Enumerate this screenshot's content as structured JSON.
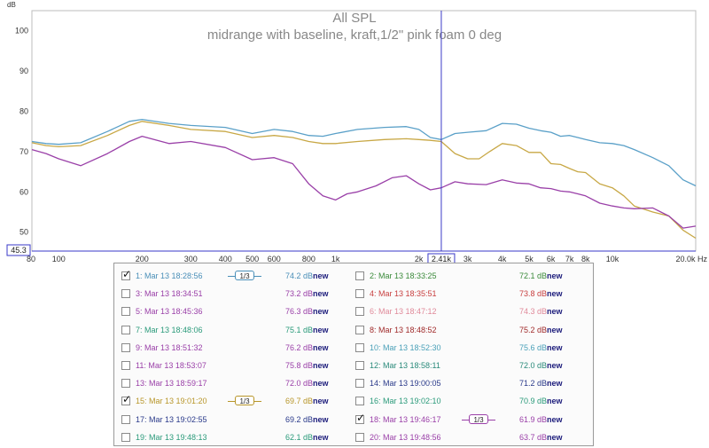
{
  "chart_data": {
    "type": "line",
    "title": "All SPL",
    "subtitle": "midrange  with baseline, kraft,1/2\" pink foam  0 deg",
    "ylabel": "dB",
    "xlabel": "Hz",
    "xscale": "log",
    "xlim": [
      80,
      20000
    ],
    "ylim": [
      45.3,
      105
    ],
    "y_ticks": [
      50,
      60,
      70,
      80,
      90,
      100
    ],
    "y_tick_labels": [
      "50",
      "60",
      "70",
      "80",
      "90",
      "100"
    ],
    "x_ticks": [
      80,
      100,
      200,
      300,
      400,
      500,
      600,
      800,
      1000,
      2000,
      3000,
      4000,
      5000,
      6000,
      7000,
      8000,
      10000,
      20000
    ],
    "x_tick_labels": [
      "80",
      "100",
      "200",
      "300",
      "400",
      "500",
      "600",
      "800",
      "1k",
      "2k",
      "3k",
      "4k",
      "5k",
      "6k",
      "7k",
      "8k",
      "10k",
      "20.0k Hz"
    ],
    "cursor": {
      "x": 2410,
      "x_label": "2.41k",
      "y_label": "45.3"
    },
    "grid": true,
    "series": [
      {
        "color": "#5aa0c8",
        "x": [
          80,
          90,
          100,
          120,
          150,
          180,
          200,
          250,
          300,
          400,
          500,
          600,
          700,
          800,
          900,
          1000,
          1200,
          1500,
          1800,
          2000,
          2200,
          2410,
          2700,
          3000,
          3500,
          4000,
          4500,
          5000,
          5500,
          6000,
          6500,
          7000,
          7500,
          8000,
          9000,
          10000,
          11000,
          12000,
          14000,
          16000,
          18000,
          20000
        ],
        "y": [
          72.5,
          72,
          71.8,
          72.2,
          75,
          77.5,
          78,
          77,
          76.5,
          76,
          74.5,
          75.5,
          75,
          74,
          73.8,
          74.5,
          75.5,
          76,
          76.2,
          75.5,
          73.5,
          73,
          74.5,
          74.8,
          75.2,
          77,
          76.8,
          75.8,
          75.2,
          74.8,
          73.8,
          74,
          73.5,
          73,
          72.2,
          72,
          71.5,
          70.5,
          68.5,
          66.5,
          63,
          61.5
        ]
      },
      {
        "color": "#c8a846",
        "x": [
          80,
          90,
          100,
          120,
          150,
          180,
          200,
          250,
          300,
          400,
          500,
          600,
          700,
          800,
          900,
          1000,
          1200,
          1500,
          1800,
          2000,
          2200,
          2410,
          2700,
          3000,
          3300,
          3600,
          4000,
          4500,
          5000,
          5500,
          6000,
          6500,
          7000,
          7500,
          8000,
          9000,
          10000,
          11000,
          12000,
          14000,
          16000,
          18000,
          20000
        ],
        "y": [
          72.2,
          71.5,
          71.2,
          71.5,
          74,
          76.5,
          77.5,
          76.5,
          75.5,
          75,
          73.5,
          74,
          73.5,
          72.5,
          72,
          72,
          72.5,
          73,
          73.2,
          73,
          72.8,
          72.5,
          69.5,
          68.2,
          68.2,
          70,
          72,
          71.5,
          69.8,
          69.8,
          67,
          66.8,
          65.8,
          65,
          64.8,
          62,
          61,
          59,
          56.5,
          55,
          54,
          50.5,
          48.5
        ]
      },
      {
        "color": "#9a40a8",
        "x": [
          80,
          90,
          100,
          120,
          150,
          180,
          200,
          250,
          300,
          400,
          500,
          600,
          700,
          800,
          900,
          1000,
          1100,
          1200,
          1400,
          1600,
          1800,
          2000,
          2200,
          2410,
          2700,
          3000,
          3500,
          4000,
          4500,
          5000,
          5500,
          6000,
          6500,
          7000,
          7500,
          8000,
          9000,
          10000,
          11000,
          12000,
          14000,
          16000,
          18000,
          20000
        ],
        "y": [
          70.5,
          69.5,
          68.2,
          66.5,
          69.5,
          72.5,
          73.8,
          72,
          72.5,
          71,
          68,
          68.5,
          67,
          62,
          59,
          58,
          59.5,
          60,
          61.5,
          63.5,
          64,
          62,
          60.5,
          61,
          62.5,
          62,
          61.8,
          63,
          62.2,
          62,
          61,
          60.8,
          60.2,
          60,
          59.5,
          59,
          57.2,
          56.5,
          56,
          55.8,
          56,
          54,
          51,
          51.5
        ]
      }
    ]
  },
  "legend": {
    "new_label": "new",
    "smoothing_label": "1/3",
    "rows": [
      [
        {
          "label": "1: Mar 13 18:28:56",
          "value": "74.2 dB",
          "checked": true,
          "color": "#4a8fb8",
          "smoothing": true
        },
        {
          "label": "2: Mar 13 18:33:25",
          "value": "72.1 dB",
          "checked": false,
          "color": "#3a8a3a",
          "smoothing": false
        }
      ],
      [
        {
          "label": "3: Mar 13 18:34:51",
          "value": "73.2 dB",
          "checked": false,
          "color": "#9a40a8",
          "smoothing": false
        },
        {
          "label": "4: Mar 13 18:35:51",
          "value": "73.8 dB",
          "checked": false,
          "color": "#c84040",
          "smoothing": false
        }
      ],
      [
        {
          "label": "5: Mar 13 18:45:36",
          "value": "76.3 dB",
          "checked": false,
          "color": "#9a40a8",
          "smoothing": false
        },
        {
          "label": "6: Mar 13 18:47:12",
          "value": "74.3 dB",
          "checked": false,
          "color": "#e08a9a",
          "smoothing": false
        }
      ],
      [
        {
          "label": "7: Mar 13 18:48:06",
          "value": "75.1 dB",
          "checked": false,
          "color": "#2a9a7a",
          "smoothing": false
        },
        {
          "label": "8: Mar 13 18:48:52",
          "value": "75.2 dB",
          "checked": false,
          "color": "#a02a2a",
          "smoothing": false
        }
      ],
      [
        {
          "label": "9: Mar 13 18:51:32",
          "value": "76.2 dB",
          "checked": false,
          "color": "#9a40a8",
          "smoothing": false
        },
        {
          "label": "10: Mar 13 18:52:30",
          "value": "75.6 dB",
          "checked": false,
          "color": "#4aa0b8",
          "smoothing": false
        }
      ],
      [
        {
          "label": "11: Mar 13 18:53:07",
          "value": "75.8 dB",
          "checked": false,
          "color": "#9a40a8",
          "smoothing": false
        },
        {
          "label": "12: Mar 13 18:58:11",
          "value": "72.0 dB",
          "checked": false,
          "color": "#2a8a7a",
          "smoothing": false
        }
      ],
      [
        {
          "label": "13: Mar 13 18:59:17",
          "value": "72.0 dB",
          "checked": false,
          "color": "#9a40a8",
          "smoothing": false
        },
        {
          "label": "14: Mar 13 19:00:05",
          "value": "71.2 dB",
          "checked": false,
          "color": "#2a3a8a",
          "smoothing": false
        }
      ],
      [
        {
          "label": "15: Mar 13 19:01:20",
          "value": "69.7 dB",
          "checked": true,
          "color": "#b8962a",
          "smoothing": true
        },
        {
          "label": "16: Mar 13 19:02:10",
          "value": "70.9 dB",
          "checked": false,
          "color": "#2a9a7a",
          "smoothing": false
        }
      ],
      [
        {
          "label": "17: Mar 13 19:02:55",
          "value": "69.2 dB",
          "checked": false,
          "color": "#2a3a8a",
          "smoothing": false
        },
        {
          "label": "18: Mar 13 19:46:17",
          "value": "61.9 dB",
          "checked": true,
          "color": "#9a40a8",
          "smoothing": true
        }
      ],
      [
        {
          "label": "19: Mar 13 19:48:13",
          "value": "62.1 dB",
          "checked": false,
          "color": "#2a9a7a",
          "smoothing": false
        },
        {
          "label": "20: Mar 13 19:48:56",
          "value": "63.7 dB",
          "checked": false,
          "color": "#9a40a8",
          "smoothing": false
        }
      ]
    ]
  }
}
